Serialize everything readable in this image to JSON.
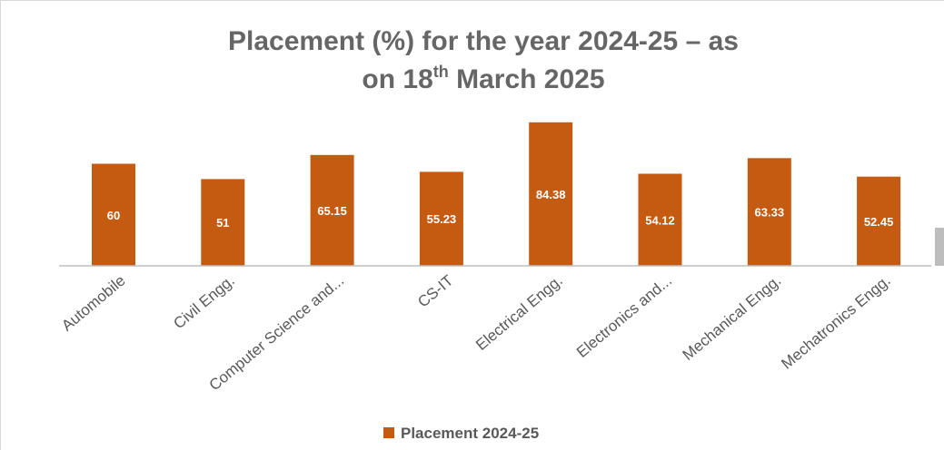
{
  "chart_data": {
    "type": "bar",
    "title": {
      "line1": "Placement (%) for the year 2024-25 – as",
      "line2_prefix": "on 18",
      "line2_superscript": "th",
      "line2_suffix": " March 2025"
    },
    "categories": [
      "Automobile",
      "Civil Engg.",
      "Computer Science and...",
      "CS-IT",
      "Electrical Engg.",
      "Electronics and...",
      "Mechanical Engg.",
      "Mechatronics Engg."
    ],
    "series": [
      {
        "name": "Placement 2024-25",
        "values": [
          60,
          51,
          65.15,
          55.23,
          84.38,
          54.12,
          63.33,
          52.45
        ],
        "labels": [
          "60",
          "51",
          "65.15",
          "55.23",
          "84.38",
          "54.12",
          "63.33",
          "52.45"
        ]
      }
    ],
    "colors": {
      "bar": "#c55a11",
      "axis": "#bfbfbf",
      "title": "#666666",
      "text": "#595959"
    },
    "ylim": [
      0,
      90
    ],
    "grid": false,
    "legend_position": "bottom"
  }
}
